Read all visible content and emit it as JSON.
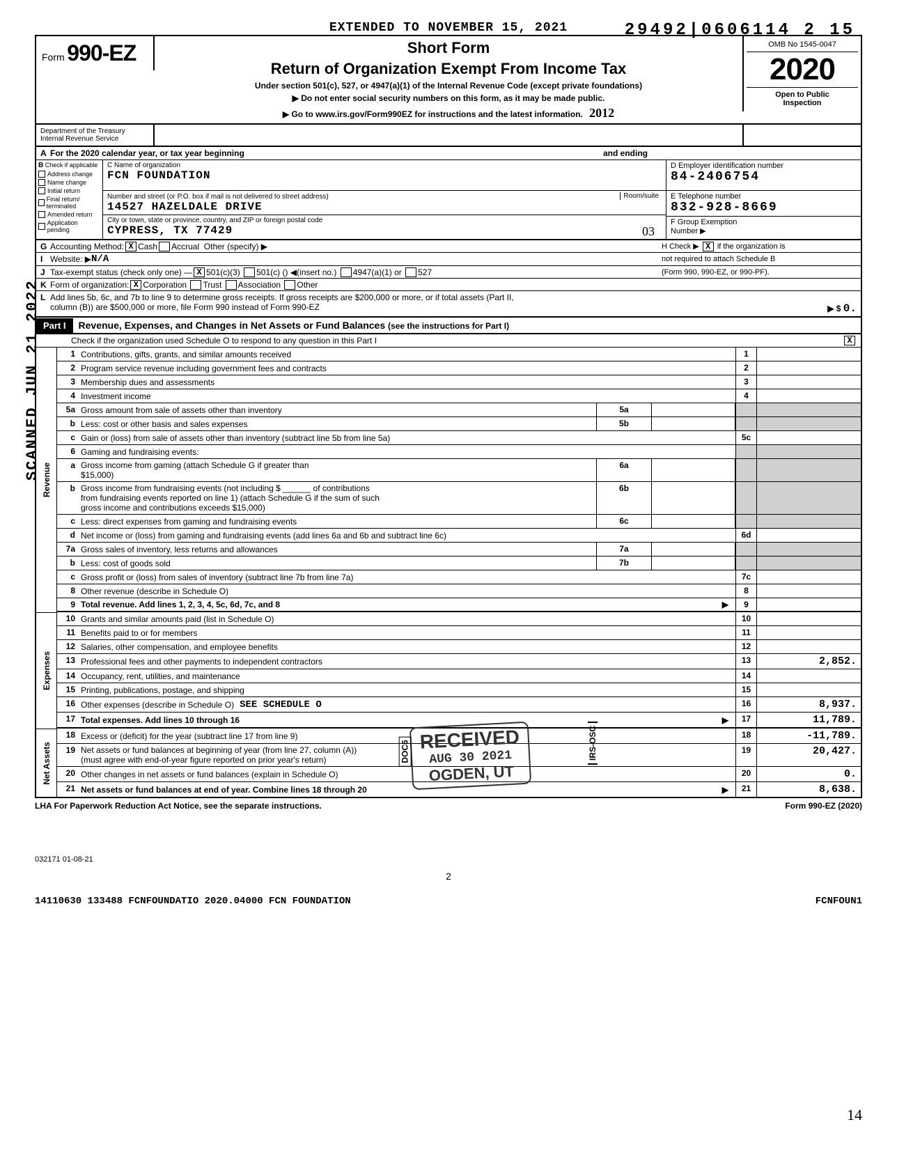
{
  "header": {
    "extended_to": "EXTENDED TO NOVEMBER 15, 2021",
    "short_form": "Short Form",
    "form_prefix": "Form",
    "form_number": "990-EZ",
    "main_title": "Return of Organization Exempt From Income Tax",
    "subtitle": "Under section 501(c), 527, or 4947(a)(1) of the Internal Revenue Code (except private foundations)",
    "do_not_enter": "▶ Do not enter social security numbers on this form, as it may be made public.",
    "goto": "▶ Go to www.irs.gov/Form990EZ for instructions and the latest information.",
    "omb": "OMB No 1545-0047",
    "year": "2020",
    "open_to_public": "Open to Public",
    "inspection": "Inspection",
    "dept": "Department of the Treasury",
    "irs": "Internal Revenue Service",
    "handwrite_tracking": "29492|0606114  2 15",
    "handwrite_year": "2012"
  },
  "rowA": {
    "label": "A",
    "text": "For the 2020 calendar year, or tax year beginning",
    "and_ending": "and ending"
  },
  "colB": {
    "header": "B",
    "check_if": "Check if applicable",
    "items": [
      "Address change",
      "Name change",
      "Initial return",
      "Final return/ terminated",
      "Amended return",
      "Application pending"
    ]
  },
  "colC": {
    "label": "C Name of organization",
    "org_name": "FCN FOUNDATION",
    "addr_label": "Number and street (or P.O. box if mail is not delivered to street address)",
    "room_label": "Room/suite",
    "address": "14527 HAZELDALE DRIVE",
    "city_label": "City or town, state or province, country, and ZIP or foreign postal code",
    "city": "CYPRESS, TX  77429"
  },
  "colDE": {
    "d_label": "D Employer identification number",
    "ein": "84-2406754",
    "e_label": "E Telephone number",
    "phone": "832-928-8669",
    "f_label": "F Group Exemption",
    "f_number": "Number ▶",
    "hand_03": "03"
  },
  "lineG": {
    "lt": "G",
    "text": "Accounting Method:",
    "cash": "Cash",
    "accrual": "Accrual",
    "other": "Other (specify) ▶",
    "h_text": "H Check ▶",
    "h_tail": "if the organization is"
  },
  "lineI": {
    "lt": "I",
    "text": "Website: ▶",
    "val": "N/A",
    "right": "not required to attach Schedule B"
  },
  "lineJ": {
    "lt": "J",
    "text": "Tax-exempt status (check only one) —",
    "opt1": "501(c)(3)",
    "opt2": "501(c) (",
    "insert": ") ◀(insert no.)",
    "opt3": "4947(a)(1) or",
    "opt4": "527",
    "right": "(Form 990, 990-EZ, or 990-PF)."
  },
  "lineK": {
    "lt": "K",
    "text": "Form of organization:",
    "corp": "Corporation",
    "trust": "Trust",
    "assoc": "Association",
    "other": "Other"
  },
  "lineL": {
    "lt": "L",
    "text1": "Add lines 5b, 6c, and 7b to line 9 to determine gross receipts. If gross receipts are $200,000 or more, or if total assets (Part II,",
    "text2": "column (B)) are $500,000 or more, file Form 990 instead of Form 990-EZ",
    "arrow": "▶  $",
    "amount": "0."
  },
  "partI": {
    "label": "Part I",
    "title": "Revenue, Expenses, and Changes in Net Assets or Fund Balances",
    "sub": "(see the instructions for Part I)",
    "check_text": "Check if the organization used Schedule O to respond to any question in this Part I",
    "check_mark": "X"
  },
  "revenue_rows": [
    {
      "n": "1",
      "d": "Contributions, gifts, grants, and similar amounts received",
      "ln": "1",
      "amt": ""
    },
    {
      "n": "2",
      "d": "Program service revenue including government fees and contracts",
      "ln": "2",
      "amt": ""
    },
    {
      "n": "3",
      "d": "Membership dues and assessments",
      "ln": "3",
      "amt": ""
    },
    {
      "n": "4",
      "d": "Investment income",
      "ln": "4",
      "amt": ""
    }
  ],
  "row5a": {
    "n": "5a",
    "d": "Gross amount from sale of assets other than inventory",
    "box": "5a"
  },
  "row5b": {
    "n": "b",
    "d": "Less: cost or other basis and sales expenses",
    "box": "5b"
  },
  "row5c": {
    "n": "c",
    "d": "Gain or (loss) from sale of assets other than inventory (subtract line 5b from line 5a)",
    "ln": "5c",
    "amt": ""
  },
  "row6": {
    "n": "6",
    "d": "Gaming and fundraising events:"
  },
  "row6a": {
    "n": "a",
    "d": "Gross income from gaming (attach Schedule G if greater than",
    "d2": "$15,000)",
    "box": "6a"
  },
  "row6b": {
    "n": "b",
    "d": "Gross income from fundraising events (not including $",
    "d2": "of contributions",
    "d3": "from fundraising events reported on line 1) (attach Schedule G if the sum of such",
    "d4": "gross income and contributions exceeds $15,000)",
    "box": "6b"
  },
  "row6c": {
    "n": "c",
    "d": "Less: direct expenses from gaming and fundraising events",
    "box": "6c"
  },
  "row6d": {
    "n": "d",
    "d": "Net income or (loss) from gaming and fundraising events (add lines 6a and 6b and subtract line 6c)",
    "ln": "6d",
    "amt": ""
  },
  "row7a": {
    "n": "7a",
    "d": "Gross sales of inventory, less returns and allowances",
    "box": "7a"
  },
  "row7b": {
    "n": "b",
    "d": "Less: cost of goods sold",
    "box": "7b"
  },
  "row7c": {
    "n": "c",
    "d": "Gross profit or (loss) from sales of inventory (subtract line 7b from line 7a)",
    "ln": "7c",
    "amt": ""
  },
  "row8": {
    "n": "8",
    "d": "Other revenue (describe in Schedule O)",
    "ln": "8",
    "amt": ""
  },
  "row9": {
    "n": "9",
    "d": "Total revenue. Add lines 1, 2, 3, 4, 5c, 6d, 7c, and 8",
    "ln": "9",
    "amt": "",
    "arrow": "▶"
  },
  "expense_rows": [
    {
      "n": "10",
      "d": "Grants and similar amounts paid (list in Schedule O)",
      "ln": "10",
      "amt": ""
    },
    {
      "n": "11",
      "d": "Benefits paid to or for members",
      "ln": "11",
      "amt": ""
    },
    {
      "n": "12",
      "d": "Salaries, other compensation, and employee benefits",
      "ln": "12",
      "amt": ""
    },
    {
      "n": "13",
      "d": "Professional fees and other payments to independent contractors",
      "ln": "13",
      "amt": "2,852."
    },
    {
      "n": "14",
      "d": "Occupancy, rent, utilities, and maintenance",
      "ln": "14",
      "amt": ""
    },
    {
      "n": "15",
      "d": "Printing, publications, postage, and shipping",
      "ln": "15",
      "amt": ""
    },
    {
      "n": "16",
      "d": "Other expenses (describe in Schedule O)",
      "ln": "16",
      "amt": "8,937.",
      "extra": "SEE SCHEDULE O"
    },
    {
      "n": "17",
      "d": "Total expenses. Add lines 10 through 16",
      "ln": "17",
      "amt": "11,789.",
      "arrow": "▶",
      "bold": true
    }
  ],
  "netassets_rows": [
    {
      "n": "18",
      "d": "Excess or (deficit) for the year (subtract line 17 from line 9)",
      "ln": "18",
      "amt": "-11,789."
    },
    {
      "n": "19",
      "d": "Net assets or fund balances at beginning of year (from line 27, column (A))",
      "d2": "(must agree with end-of-year figure reported on prior year's return)",
      "ln": "19",
      "amt": "20,427."
    },
    {
      "n": "20",
      "d": "Other changes in net assets or fund balances (explain in Schedule O)",
      "ln": "20",
      "amt": "0."
    },
    {
      "n": "21",
      "d": "Net assets or fund balances at end of year. Combine lines 18 through 20",
      "ln": "21",
      "amt": "8,638.",
      "arrow": "▶",
      "bold": true
    }
  ],
  "footer": {
    "lha": "LHA  For Paperwork Reduction Act Notice, see the separate instructions.",
    "form_ref": "Form 990-EZ (2020)",
    "code": "032171 01-08-21",
    "page": "2",
    "bottom": "14110630 133488 FCNFOUNDATIO  2020.04000 FCN FOUNDATION",
    "bottom_right": "FCNFOUN1",
    "hand": "14"
  },
  "stamps": {
    "scanned": "SCANNED JUN 21 2022",
    "received": "RECEIVED",
    "received_date": "AUG 30 2021",
    "received_loc": "OGDEN, UT",
    "doc6": "DOC6",
    "irs_osc": "IRS-OSC"
  },
  "side_labels": {
    "revenue": "Revenue",
    "expenses": "Expenses",
    "netassets": "Net Assets"
  }
}
